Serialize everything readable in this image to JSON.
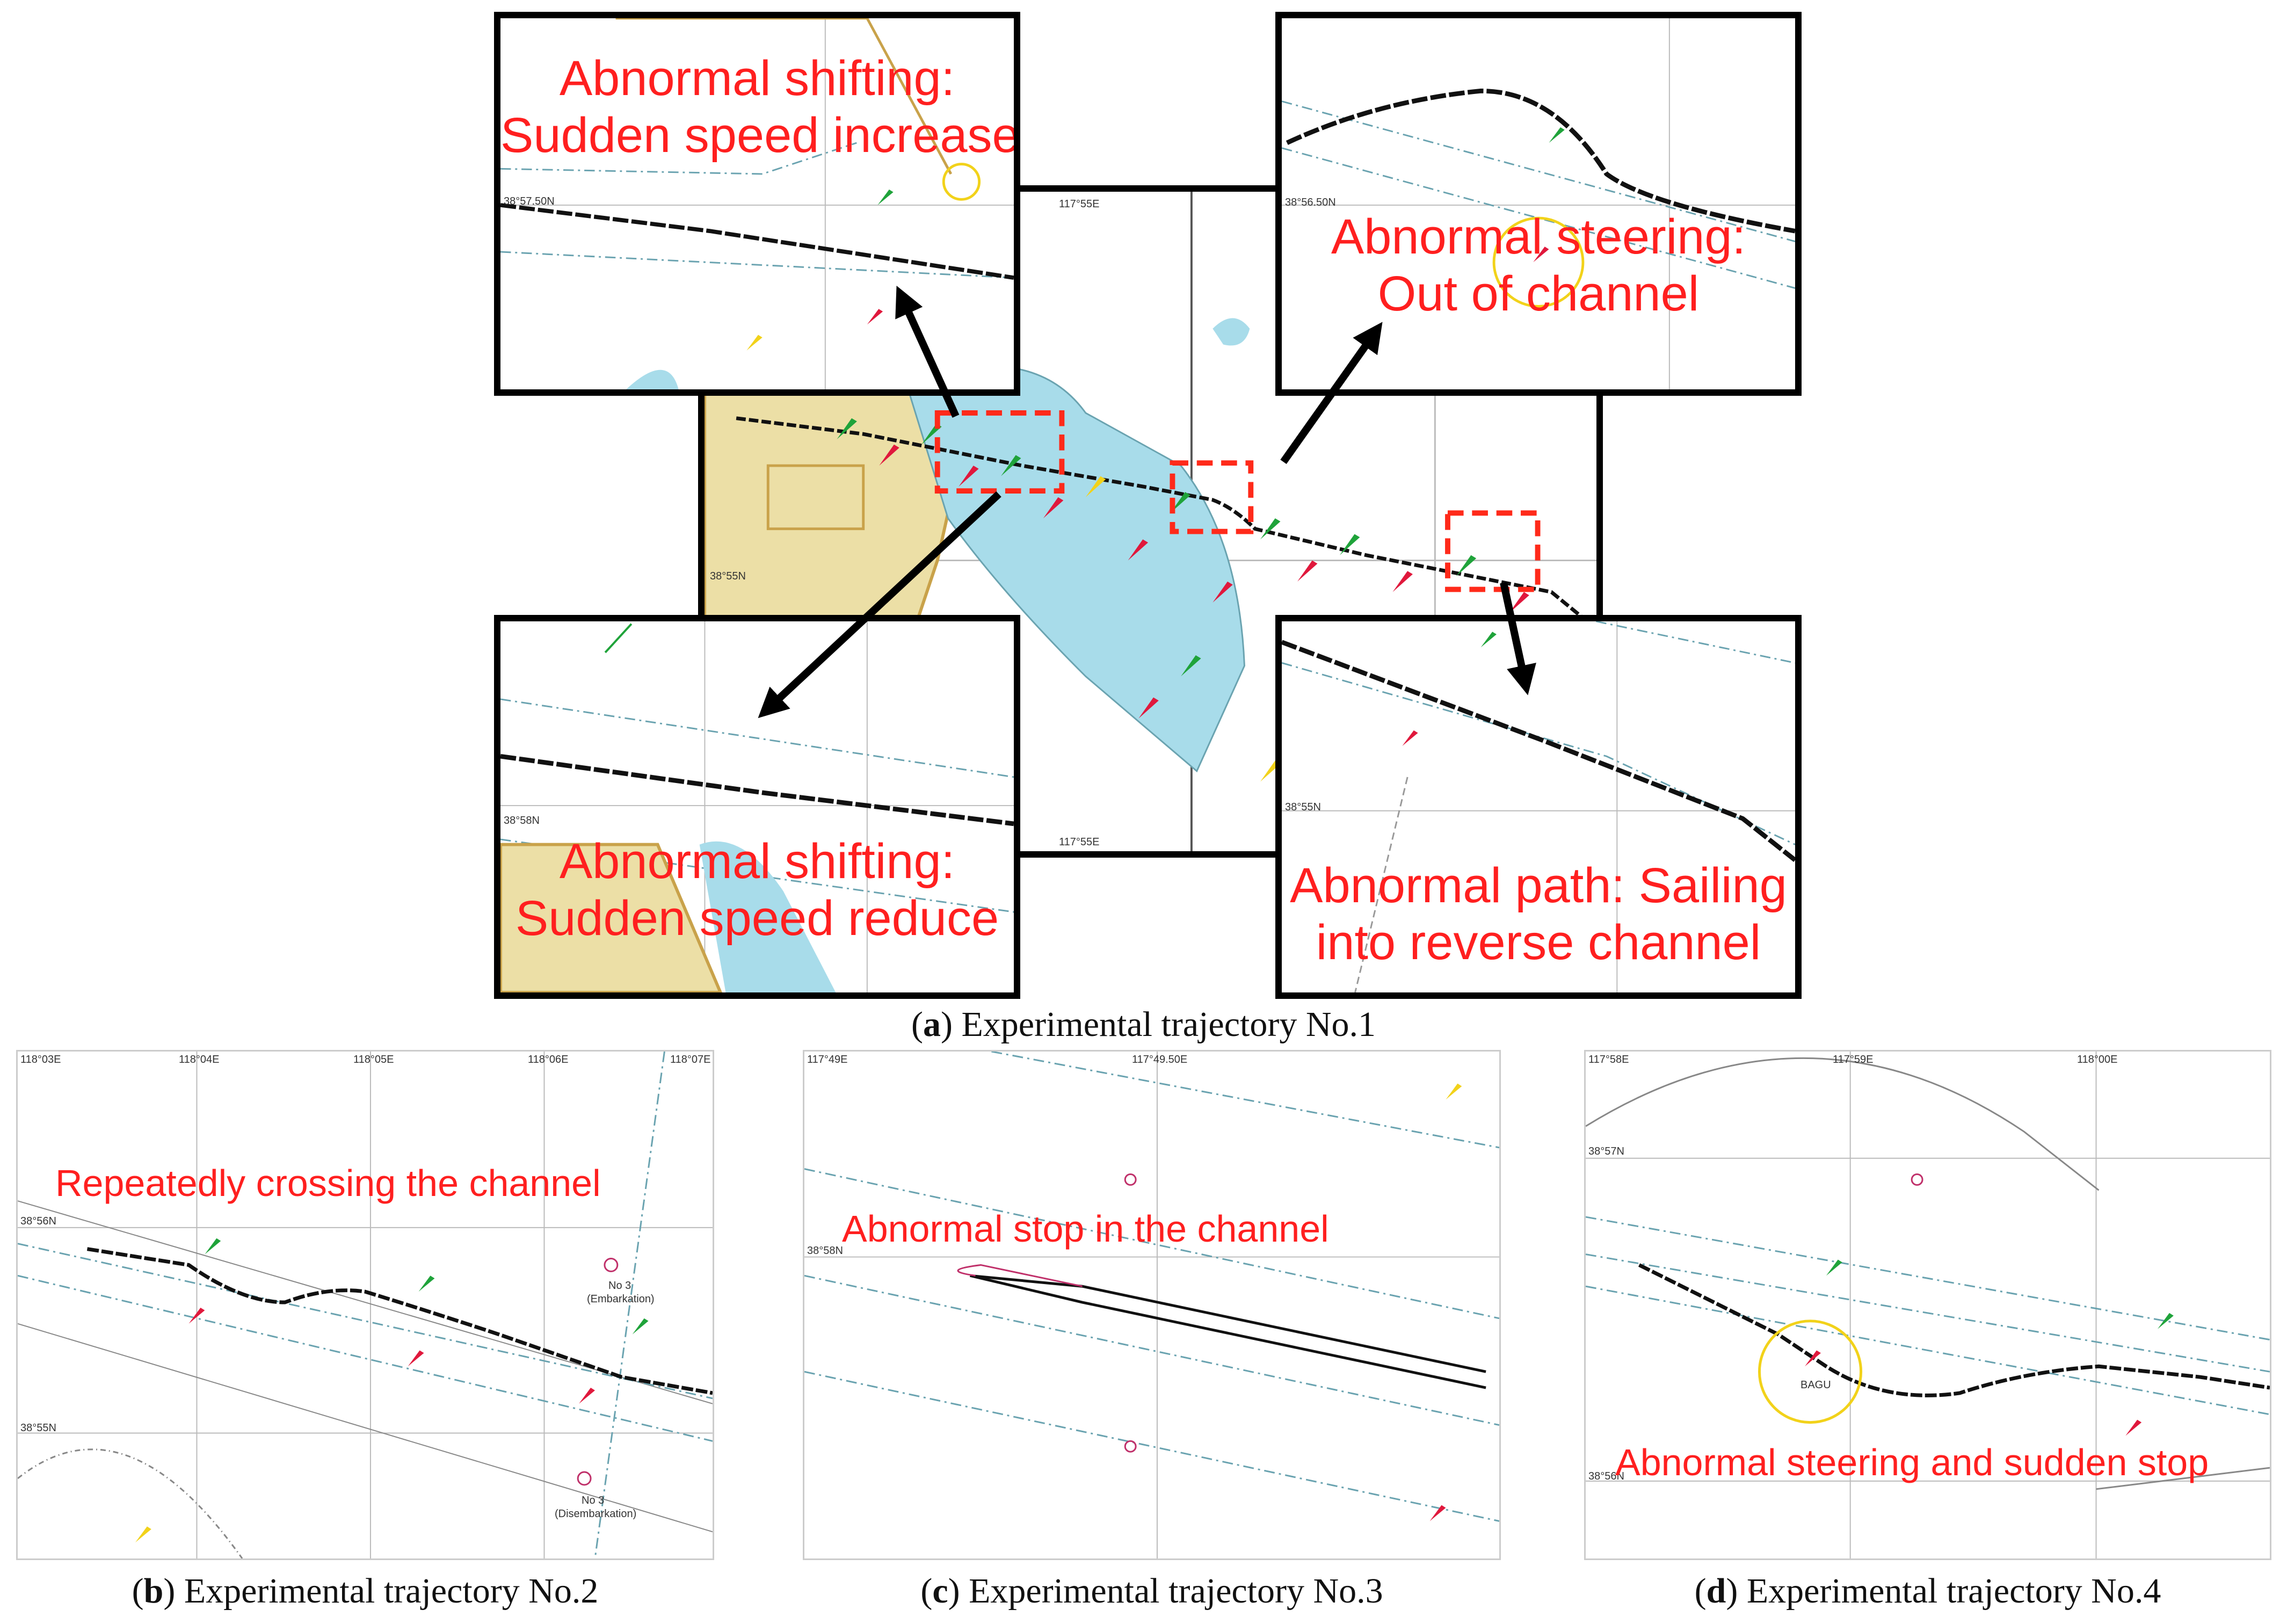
{
  "figure": {
    "panel_a": {
      "caption_letter": "a",
      "caption_text": "Experimental trajectory No.1",
      "main_lat_label": "38°55N",
      "main_lon_label_top": "117°55E",
      "main_lon_label_bottom": "117°55E",
      "insets": [
        {
          "line1": "Abnormal shifting:",
          "line2": "Sudden speed increase",
          "lat_label": "38°57.50N"
        },
        {
          "line1": "Abnormal steering:",
          "line2": "Out of channel",
          "lat_label": "38°56.50N"
        },
        {
          "line1": "Abnormal shifting:",
          "line2": "Sudden speed reduce",
          "lat_label": "38°58N"
        },
        {
          "line1": "Abnormal path: Sailing",
          "line2": "into reverse channel",
          "lat_label": "38°55N"
        }
      ]
    },
    "panel_b": {
      "caption_letter": "b",
      "caption_text": "Experimental trajectory No.2",
      "annotation": "Repeatedly crossing the channel",
      "lon_labels": [
        "118°03E",
        "118°04E",
        "118°05E",
        "118°06E",
        "118°07E"
      ],
      "lat_labels": [
        "38°56N",
        "38°55N"
      ],
      "place_labels": [
        "No 3",
        "(Embarkation)",
        "No 3",
        "(Disembarkation)"
      ]
    },
    "panel_c": {
      "caption_letter": "c",
      "caption_text": "Experimental trajectory No.3",
      "annotation": "Abnormal stop in the channel",
      "lon_labels": [
        "117°49E",
        "117°49.50E"
      ],
      "lat_labels": [
        "38°58N"
      ]
    },
    "panel_d": {
      "caption_letter": "d",
      "caption_text": "Experimental trajectory No.4",
      "annotation": "Abnormal steering and sudden stop",
      "lon_labels": [
        "117°58E",
        "117°59E",
        "118°00E"
      ],
      "lat_labels": [
        "38°57N",
        "38°56N"
      ],
      "place_labels": [
        "BAGU"
      ]
    },
    "colors": {
      "annotation_red": "#ff1f1f",
      "highlight_box": "#ff2a1a",
      "water": "#a8dcea",
      "land": "#ecdfa6",
      "coast": "#c9a24a",
      "buoy_green": "#1fa33a",
      "buoy_red": "#e0183c",
      "buoy_yellow": "#f2d21a",
      "channel_dash": "#6aa3b0",
      "trajectory": "#111111"
    }
  }
}
